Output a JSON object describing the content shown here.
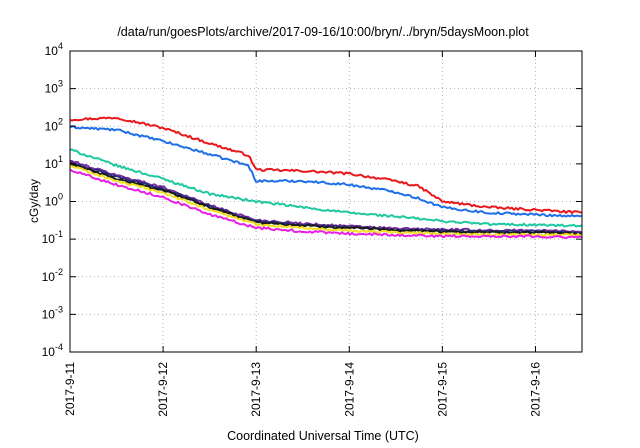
{
  "chart_data": {
    "type": "line",
    "title": "/data/run/goesPlots/archive/2017-09-16/10:00/bryn/../bryn/5daysMoon.plot",
    "xlabel": "Coordinated Universal Time (UTC)",
    "ylabel": "cGy/day",
    "x_ticks": [
      "2017-9-11",
      "2017-9-12",
      "2017-9-13",
      "2017-9-14",
      "2017-9-15",
      "2017-9-16"
    ],
    "xlim": [
      "2017-9-11",
      "2017-9-16 12:00"
    ],
    "y_scale": "log",
    "ylim": [
      0.0001,
      10000
    ],
    "y_ticks": [
      {
        "base": "10",
        "exp": "-4"
      },
      {
        "base": "10",
        "exp": "-3"
      },
      {
        "base": "10",
        "exp": "-2"
      },
      {
        "base": "10",
        "exp": "-1"
      },
      {
        "base": "10",
        "exp": "0"
      },
      {
        "base": "10",
        "exp": "1"
      },
      {
        "base": "10",
        "exp": "2"
      },
      {
        "base": "10",
        "exp": "3"
      },
      {
        "base": "10",
        "exp": "4"
      }
    ],
    "grid": true,
    "legend": "none",
    "series": [
      {
        "color": "#e8181c",
        "x": [
          "2017-09-11 00:00",
          "2017-09-11 12:00",
          "2017-09-12 00:00",
          "2017-09-12 12:00",
          "2017-09-12 22:00",
          "2017-09-13 00:00",
          "2017-09-13 12:00",
          "2017-09-14 00:00",
          "2017-09-14 12:00",
          "2017-09-14 18:00",
          "2017-09-15 00:00",
          "2017-09-15 12:00",
          "2017-09-16 00:00",
          "2017-09-16 12:00"
        ],
        "y": [
          150,
          170,
          90,
          35,
          17,
          7,
          6.5,
          5.5,
          3.5,
          2.5,
          1,
          0.7,
          0.6,
          0.5
        ]
      },
      {
        "color": "#1f6fe8",
        "x": [
          "2017-09-11 00:00",
          "2017-09-11 12:00",
          "2017-09-12 00:00",
          "2017-09-12 12:00",
          "2017-09-12 22:00",
          "2017-09-13 00:00",
          "2017-09-13 12:00",
          "2017-09-14 00:00",
          "2017-09-14 12:00",
          "2017-09-14 18:00",
          "2017-09-15 00:00",
          "2017-09-15 12:00",
          "2017-09-16 00:00",
          "2017-09-16 12:00"
        ],
        "y": [
          95,
          80,
          40,
          18,
          9,
          3.5,
          3.5,
          2.8,
          1.8,
          1.2,
          0.7,
          0.5,
          0.45,
          0.4
        ]
      },
      {
        "color": "#1fc8a0",
        "x": [
          "2017-09-11 00:00",
          "2017-09-11 12:00",
          "2017-09-12 00:00",
          "2017-09-12 12:00",
          "2017-09-13 00:00",
          "2017-09-13 12:00",
          "2017-09-14 00:00",
          "2017-09-14 12:00",
          "2017-09-15 00:00",
          "2017-09-15 12:00",
          "2017-09-16 00:00",
          "2017-09-16 12:00"
        ],
        "y": [
          24,
          9,
          4,
          1.6,
          1,
          0.7,
          0.5,
          0.4,
          0.3,
          0.25,
          0.24,
          0.22
        ]
      },
      {
        "color": "#7a2ea0",
        "x": [
          "2017-09-11 00:00",
          "2017-09-11 12:00",
          "2017-09-12 00:00",
          "2017-09-12 12:00",
          "2017-09-13 00:00",
          "2017-09-13 12:00",
          "2017-09-14 00:00",
          "2017-09-14 12:00",
          "2017-09-15 00:00",
          "2017-09-15 12:00",
          "2017-09-16 00:00",
          "2017-09-16 12:00"
        ],
        "y": [
          12,
          5,
          2.4,
          0.8,
          0.32,
          0.26,
          0.22,
          0.19,
          0.18,
          0.17,
          0.17,
          0.16
        ]
      },
      {
        "color": "#2a2a80",
        "x": [
          "2017-09-11 00:00",
          "2017-09-11 12:00",
          "2017-09-12 00:00",
          "2017-09-12 12:00",
          "2017-09-13 00:00",
          "2017-09-13 12:00",
          "2017-09-14 00:00",
          "2017-09-14 12:00",
          "2017-09-15 00:00",
          "2017-09-15 12:00",
          "2017-09-16 00:00",
          "2017-09-16 12:00"
        ],
        "y": [
          11,
          4.5,
          2.2,
          0.75,
          0.3,
          0.24,
          0.21,
          0.18,
          0.17,
          0.16,
          0.16,
          0.15
        ]
      },
      {
        "color": "#1a1a1a",
        "x": [
          "2017-09-11 00:00",
          "2017-09-11 12:00",
          "2017-09-12 00:00",
          "2017-09-12 12:00",
          "2017-09-13 00:00",
          "2017-09-13 12:00",
          "2017-09-14 00:00",
          "2017-09-14 12:00",
          "2017-09-15 00:00",
          "2017-09-15 12:00",
          "2017-09-16 00:00",
          "2017-09-16 12:00"
        ],
        "y": [
          10,
          4,
          2,
          0.7,
          0.28,
          0.23,
          0.2,
          0.17,
          0.16,
          0.15,
          0.15,
          0.14
        ]
      },
      {
        "color": "#f0e020",
        "x": [
          "2017-09-11 00:00",
          "2017-09-11 12:00",
          "2017-09-12 00:00",
          "2017-09-12 12:00",
          "2017-09-13 00:00",
          "2017-09-13 12:00",
          "2017-09-14 00:00",
          "2017-09-14 12:00",
          "2017-09-15 00:00",
          "2017-09-15 12:00",
          "2017-09-16 00:00",
          "2017-09-16 12:00"
        ],
        "y": [
          9,
          3.5,
          1.7,
          0.6,
          0.25,
          0.2,
          0.17,
          0.15,
          0.14,
          0.13,
          0.13,
          0.13
        ]
      },
      {
        "color": "#e820e8",
        "x": [
          "2017-09-11 00:00",
          "2017-09-11 12:00",
          "2017-09-12 00:00",
          "2017-09-12 12:00",
          "2017-09-13 00:00",
          "2017-09-13 12:00",
          "2017-09-14 00:00",
          "2017-09-14 12:00",
          "2017-09-15 00:00",
          "2017-09-15 12:00",
          "2017-09-16 00:00",
          "2017-09-16 12:00"
        ],
        "y": [
          7,
          2.8,
          1.3,
          0.45,
          0.2,
          0.16,
          0.14,
          0.13,
          0.12,
          0.12,
          0.12,
          0.11
        ]
      }
    ]
  }
}
